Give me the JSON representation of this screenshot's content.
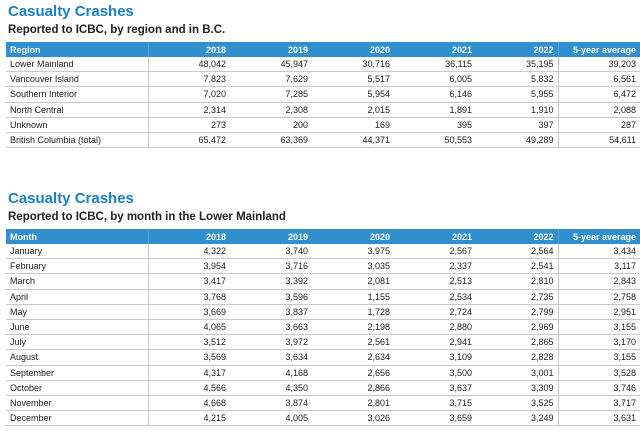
{
  "tables": [
    {
      "title": "Casualty Crashes",
      "subtitle": "Reported to ICBC, by region and in B.C.",
      "columns": [
        "Region",
        "2018",
        "2019",
        "2020",
        "2021",
        "2022",
        "5-year average"
      ],
      "rows": [
        [
          "Lower Mainland",
          "48,042",
          "45,947",
          "30,716",
          "36,115",
          "35,195",
          "39,203"
        ],
        [
          "Vancouver Island",
          "7,823",
          "7,629",
          "5,517",
          "6,005",
          "5,832",
          "6,561"
        ],
        [
          "Southern Interior",
          "7,020",
          "7,285",
          "5,954",
          "6,146",
          "5,955",
          "6,472"
        ],
        [
          "North Central",
          "2,314",
          "2,308",
          "2,015",
          "1,891",
          "1,910",
          "2,088"
        ],
        [
          "Unknown",
          "273",
          "200",
          "169",
          "395",
          "397",
          "287"
        ],
        [
          "British Columbia (total)",
          "65,472",
          "63,369",
          "44,371",
          "50,553",
          "49,289",
          "54,611"
        ]
      ]
    },
    {
      "title": "Casualty Crashes",
      "subtitle": "Reported to ICBC, by month in the Lower Mainland",
      "columns": [
        "Month",
        "2018",
        "2019",
        "2020",
        "2021",
        "2022",
        "5-year average"
      ],
      "rows": [
        [
          "January",
          "4,322",
          "3,740",
          "3,975",
          "2,567",
          "2,564",
          "3,434"
        ],
        [
          "February",
          "3,954",
          "3,716",
          "3,035",
          "2,337",
          "2,541",
          "3,117"
        ],
        [
          "March",
          "3,417",
          "3,392",
          "2,081",
          "2,513",
          "2,810",
          "2,843"
        ],
        [
          "April",
          "3,768",
          "3,596",
          "1,155",
          "2,534",
          "2,735",
          "2,758"
        ],
        [
          "May",
          "3,669",
          "3,837",
          "1,728",
          "2,724",
          "2,799",
          "2,951"
        ],
        [
          "June",
          "4,065",
          "3,663",
          "2,198",
          "2,880",
          "2,969",
          "3,155"
        ],
        [
          "July",
          "3,512",
          "3,972",
          "2,561",
          "2,941",
          "2,865",
          "3,170"
        ],
        [
          "August",
          "3,569",
          "3,634",
          "2,634",
          "3,109",
          "2,828",
          "3,155"
        ],
        [
          "September",
          "4,317",
          "4,168",
          "2,656",
          "3,500",
          "3,001",
          "3,528"
        ],
        [
          "October",
          "4,566",
          "4,350",
          "2,866",
          "3,637",
          "3,309",
          "3,746"
        ],
        [
          "November",
          "4,668",
          "3,874",
          "2,801",
          "3,715",
          "3,525",
          "3,717"
        ],
        [
          "December",
          "4,215",
          "4,005",
          "3,026",
          "3,659",
          "3,249",
          "3,631"
        ]
      ]
    }
  ]
}
